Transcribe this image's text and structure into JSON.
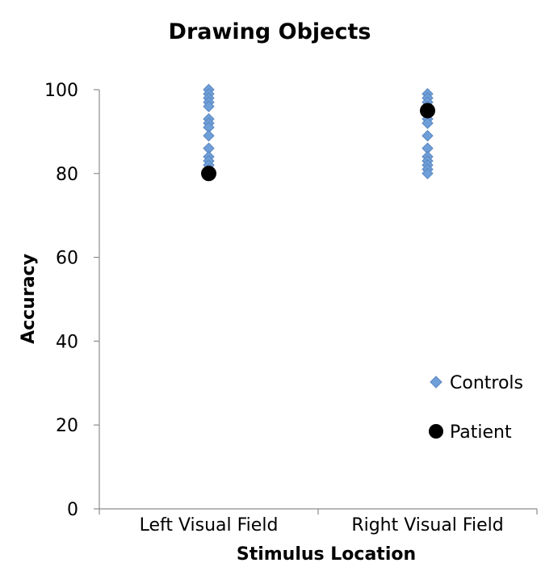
{
  "chart_data": {
    "type": "scatter",
    "title": "Drawing Objects",
    "xlabel": "Stimulus Location",
    "ylabel": "Accuracy",
    "categories": [
      "Left Visual Field",
      "Right Visual Field"
    ],
    "ylim": [
      0,
      100
    ],
    "yticks": [
      0,
      20,
      40,
      60,
      80,
      100
    ],
    "grid": false,
    "legend_position": "right",
    "series": [
      {
        "name": "Controls",
        "marker": "diamond",
        "color": "#6f9fd8",
        "points": [
          {
            "category": "Left Visual Field",
            "values": [
              100,
              99,
              98,
              97,
              96,
              93,
              92,
              91,
              89,
              86,
              84,
              83,
              82,
              81
            ]
          },
          {
            "category": "Right Visual Field",
            "values": [
              99,
              98,
              97,
              96,
              95,
              94,
              93,
              92,
              89,
              86,
              84,
              83,
              82,
              81,
              80
            ]
          }
        ]
      },
      {
        "name": "Patient",
        "marker": "circle",
        "color": "#000000",
        "points": [
          {
            "category": "Left Visual Field",
            "values": [
              80
            ]
          },
          {
            "category": "Right Visual Field",
            "values": [
              95
            ]
          }
        ]
      }
    ]
  }
}
